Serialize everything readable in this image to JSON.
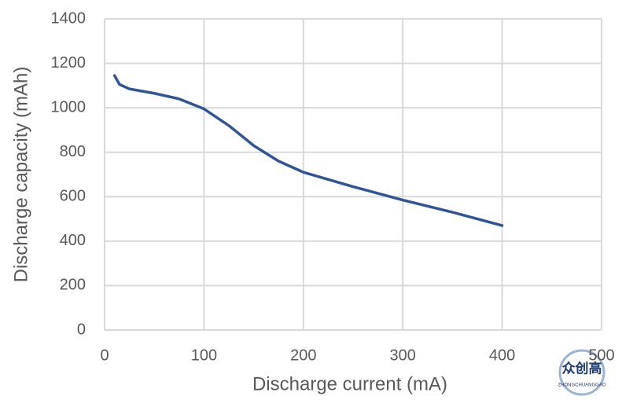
{
  "chart_data": {
    "type": "line",
    "x_label": "Discharge current (mA)",
    "y_label": "Discharge capacity (mAh)",
    "series": [
      {
        "name": "Discharge capacity",
        "color": "#2f5597",
        "x": [
          10,
          15,
          25,
          50,
          75,
          100,
          125,
          150,
          175,
          200,
          250,
          300,
          350,
          400
        ],
        "values": [
          1145,
          1105,
          1085,
          1065,
          1040,
          995,
          920,
          830,
          760,
          710,
          645,
          585,
          530,
          470
        ]
      }
    ],
    "xlim": [
      0,
      500
    ],
    "xticks": [
      0,
      100,
      200,
      300,
      400,
      500
    ],
    "ylim": [
      0,
      1400
    ],
    "yticks": [
      0,
      200,
      400,
      600,
      800,
      1000,
      1200,
      1400
    ],
    "grid": true
  },
  "watermark": {
    "title": "众创高",
    "subtitle": "ZHONGCHUANGGAO"
  }
}
